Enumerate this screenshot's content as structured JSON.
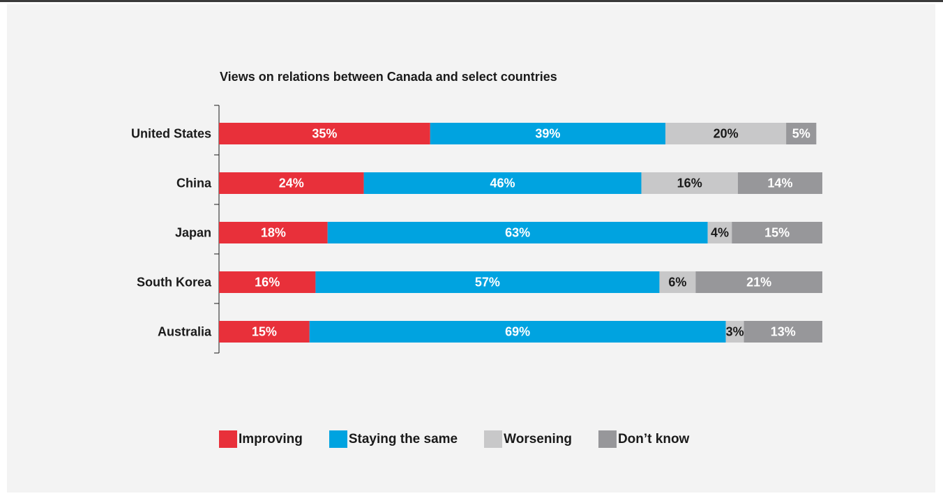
{
  "chart_data": {
    "type": "bar",
    "orientation": "horizontal",
    "stacked": true,
    "title": "Views on relations between Canada and select countries",
    "categories": [
      "United States",
      "China",
      "Japan",
      "South Korea",
      "Australia"
    ],
    "series": [
      {
        "name": "Improving",
        "values": [
          35,
          24,
          18,
          16,
          15
        ],
        "color": "#e8303a",
        "label_color": "#ffffff"
      },
      {
        "name": "Staying the same",
        "values": [
          39,
          46,
          63,
          57,
          69
        ],
        "color": "#00a3e0",
        "label_color": "#ffffff"
      },
      {
        "name": "Worsening",
        "values": [
          20,
          16,
          4,
          6,
          3
        ],
        "color": "#c8c8c9",
        "label_color": "#1a1a1a"
      },
      {
        "name": "Don’t know",
        "values": [
          5,
          14,
          15,
          21,
          13
        ],
        "color": "#97979a",
        "label_color": "#ffffff"
      }
    ],
    "value_suffix": "%",
    "xlim": [
      0,
      100
    ],
    "grid": false,
    "legend_position": "bottom"
  }
}
